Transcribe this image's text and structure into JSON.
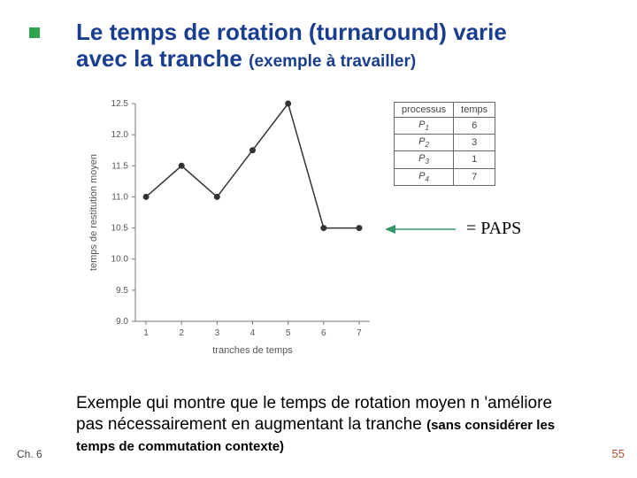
{
  "title": {
    "line1": "Le temps de rotation (turnaround) varie",
    "line2_main": "avec la tranche ",
    "line2_paren": "(exemple à travailler)"
  },
  "chart": {
    "type": "line",
    "xlabel": "tranches de temps",
    "ylabel": "temps de restitution moyen",
    "xlim": [
      0.7,
      7.3
    ],
    "ylim": [
      9.0,
      12.5
    ],
    "xtick_labels": [
      "1",
      "2",
      "3",
      "4",
      "5",
      "6",
      "7"
    ],
    "ytick_labels": [
      "9.0",
      "9.5",
      "10.0",
      "10.5",
      "11.0",
      "11.5",
      "12.0",
      "12.5"
    ],
    "values_x": [
      1,
      2,
      3,
      4,
      5,
      6,
      7
    ],
    "values_y": [
      11.0,
      11.5,
      11.0,
      11.75,
      12.5,
      10.5,
      10.5
    ],
    "line_color": "#333333",
    "line_width": 1.5,
    "marker_color": "#333333",
    "marker_size": 3.5,
    "label_fontsize": 11,
    "tick_fontsize": 10,
    "axis_color": "#777777",
    "tick_color": "#777777",
    "text_color": "#555555",
    "background_color": "#ffffff"
  },
  "process_table": {
    "header_proc": "processus",
    "header_time": "temps",
    "rows": [
      {
        "name": "P",
        "sub": "1",
        "time": "6"
      },
      {
        "name": "P",
        "sub": "2",
        "time": "3"
      },
      {
        "name": "P",
        "sub": "3",
        "time": "1"
      },
      {
        "name": "P",
        "sub": "4",
        "time": "7"
      }
    ]
  },
  "paps": {
    "label": "= PAPS",
    "arrow_color": "#339966"
  },
  "bottom": {
    "text": "Exemple qui montre que le temps de rotation moyen n 'améliore pas nécessairement en augmentant la tranche ",
    "paren": "(sans considérer les temps de commutation contexte)"
  },
  "footer": {
    "chapter": "Ch. 6",
    "page": "55"
  }
}
